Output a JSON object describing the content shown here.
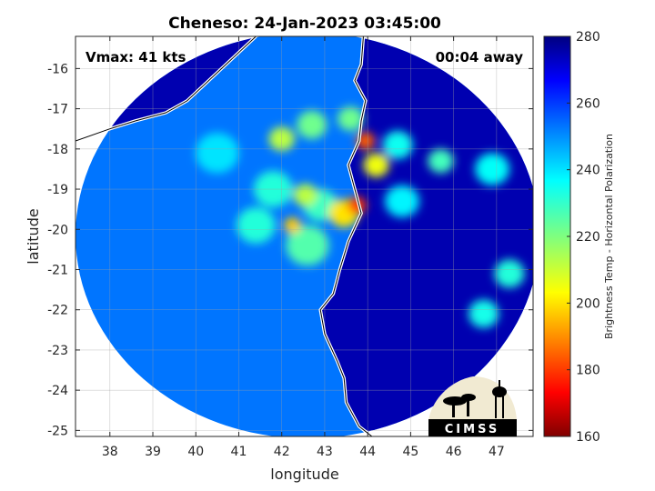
{
  "chart_data": {
    "type": "heatmap",
    "title": "Cheneso: 24-Jan-2023 03:45:00",
    "xlabel": "longitude",
    "ylabel": "latitude",
    "xlim": [
      37.2,
      47.85
    ],
    "ylim": [
      -25.15,
      -15.2
    ],
    "xticks": [
      38,
      39,
      40,
      41,
      42,
      43,
      44,
      45,
      46,
      47
    ],
    "yticks": [
      -16,
      -17,
      -18,
      -19,
      -20,
      -21,
      -22,
      -23,
      -24,
      -25
    ],
    "grid": true,
    "colorbar": {
      "label": "Brightness Temp - Horizontal Polarization",
      "range": [
        160,
        280
      ],
      "ticks": [
        280,
        260,
        240,
        220,
        200,
        180,
        160
      ],
      "colormap": "jet"
    },
    "swath": {
      "center_lon": 42.6,
      "center_lat": -20.15,
      "radius_lon": 5.4,
      "radius_lat": 5.05
    },
    "background_tb": 253,
    "ocean_tb": 246,
    "land_tb": 275,
    "features": [
      {
        "lon": 43.95,
        "lat": -17.8,
        "tb": 184,
        "r": 0.22
      },
      {
        "lon": 44.2,
        "lat": -18.4,
        "tb": 205,
        "r": 0.3
      },
      {
        "lon": 43.75,
        "lat": -19.4,
        "tb": 180,
        "r": 0.22
      },
      {
        "lon": 43.45,
        "lat": -19.6,
        "tb": 200,
        "r": 0.35
      },
      {
        "lon": 42.55,
        "lat": -19.15,
        "tb": 212,
        "r": 0.28
      },
      {
        "lon": 42.25,
        "lat": -19.9,
        "tb": 197,
        "r": 0.2
      },
      {
        "lon": 42.0,
        "lat": -17.75,
        "tb": 212,
        "r": 0.3
      },
      {
        "lon": 42.7,
        "lat": -17.4,
        "tb": 222,
        "r": 0.35
      },
      {
        "lon": 43.6,
        "lat": -17.25,
        "tb": 222,
        "r": 0.3
      },
      {
        "lon": 41.4,
        "lat": -19.9,
        "tb": 232,
        "r": 0.45
      },
      {
        "lon": 42.6,
        "lat": -20.4,
        "tb": 226,
        "r": 0.5
      },
      {
        "lon": 42.9,
        "lat": -19.4,
        "tb": 229,
        "r": 0.4
      },
      {
        "lon": 41.8,
        "lat": -19.0,
        "tb": 232,
        "r": 0.45
      },
      {
        "lon": 40.5,
        "lat": -18.1,
        "tb": 240,
        "r": 0.5
      },
      {
        "lon": 44.7,
        "lat": -17.9,
        "tb": 235,
        "r": 0.35
      },
      {
        "lon": 45.7,
        "lat": -18.3,
        "tb": 228,
        "r": 0.3
      },
      {
        "lon": 44.8,
        "lat": -19.3,
        "tb": 238,
        "r": 0.4
      },
      {
        "lon": 47.3,
        "lat": -21.1,
        "tb": 232,
        "r": 0.35
      },
      {
        "lon": 46.7,
        "lat": -22.1,
        "tb": 234,
        "r": 0.35
      },
      {
        "lon": 46.9,
        "lat": -18.5,
        "tb": 236,
        "r": 0.4
      }
    ],
    "coastline_madagascar": [
      [
        43.9,
        -15.2
      ],
      [
        43.85,
        -15.9
      ],
      [
        43.7,
        -16.3
      ],
      [
        43.95,
        -16.8
      ],
      [
        43.85,
        -17.3
      ],
      [
        43.8,
        -17.8
      ],
      [
        43.55,
        -18.4
      ],
      [
        43.7,
        -19.0
      ],
      [
        43.85,
        -19.6
      ],
      [
        43.55,
        -20.3
      ],
      [
        43.35,
        -21.0
      ],
      [
        43.2,
        -21.6
      ],
      [
        42.9,
        -22.0
      ],
      [
        43.0,
        -22.6
      ],
      [
        43.3,
        -23.3
      ],
      [
        43.45,
        -23.7
      ],
      [
        43.5,
        -24.3
      ],
      [
        43.8,
        -24.9
      ],
      [
        44.1,
        -25.15
      ]
    ],
    "coastline_mozambique": [
      [
        37.2,
        -17.8
      ],
      [
        38.0,
        -17.5
      ],
      [
        38.6,
        -17.3
      ],
      [
        39.3,
        -17.1
      ],
      [
        39.8,
        -16.8
      ],
      [
        40.2,
        -16.4
      ],
      [
        40.6,
        -16.0
      ],
      [
        41.0,
        -15.6
      ],
      [
        41.4,
        -15.2
      ]
    ],
    "annotations": {
      "vmax": "Vmax: 41 kts",
      "time": "00:04 away"
    },
    "logo_text": "CIMSS"
  }
}
